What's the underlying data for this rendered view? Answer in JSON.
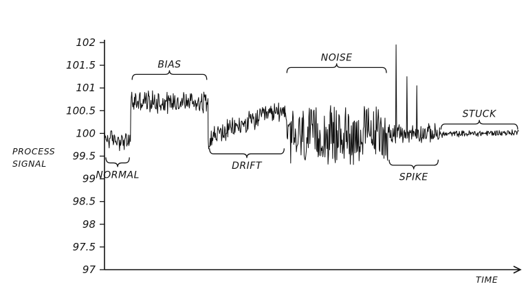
{
  "chart_data": {
    "type": "line",
    "title": "",
    "xlabel": "TIME",
    "ylabel_lines": [
      "PROCESS",
      "SIGNAL"
    ],
    "ylim": [
      97,
      102
    ],
    "yticks": [
      {
        "value": 102,
        "label": "102"
      },
      {
        "value": 101.5,
        "label": "101.5"
      },
      {
        "value": 101,
        "label": "101"
      },
      {
        "value": 100.5,
        "label": "100.5"
      },
      {
        "value": 100,
        "label": "100"
      },
      {
        "value": 99.5,
        "label": "99.5"
      },
      {
        "value": 99,
        "label": "99"
      },
      {
        "value": 98.5,
        "label": "98.5"
      },
      {
        "value": 98,
        "label": "98"
      },
      {
        "value": 97.5,
        "label": "97.5"
      },
      {
        "value": 97,
        "label": "97"
      }
    ],
    "xlim": [
      0,
      600
    ],
    "grid": false,
    "segments": [
      {
        "label": "NORMAL",
        "x_start": 0,
        "x_end": 38,
        "baseline_start": 99.9,
        "baseline_end": 99.8,
        "amplitude": 0.18,
        "brace": "below"
      },
      {
        "label": "BIAS",
        "x_start": 38,
        "x_end": 150,
        "baseline_start": 100.7,
        "baseline_end": 100.7,
        "amplitude": 0.22,
        "brace": "above"
      },
      {
        "label": "DRIFT",
        "x_start": 150,
        "x_end": 262,
        "baseline_start": 99.9,
        "baseline_end": 100.55,
        "amplitude": 0.2,
        "brace": "below"
      },
      {
        "label": "NOISE",
        "x_start": 262,
        "x_end": 410,
        "baseline_start": 99.9,
        "baseline_end": 100.0,
        "amplitude": 0.55,
        "brace": "above"
      },
      {
        "label": "SPIKE",
        "x_start": 410,
        "x_end": 485,
        "baseline_start": 100.0,
        "baseline_end": 100.0,
        "amplitude": 0.18,
        "brace": "below",
        "spikes": [
          {
            "x": 422,
            "value": 101.95
          },
          {
            "x": 438,
            "value": 101.25
          },
          {
            "x": 452,
            "value": 101.05
          }
        ]
      },
      {
        "label": "STUCK",
        "x_start": 485,
        "x_end": 600,
        "baseline_start": 99.98,
        "baseline_end": 100.02,
        "amplitude": 0.06,
        "brace": "above"
      }
    ]
  }
}
